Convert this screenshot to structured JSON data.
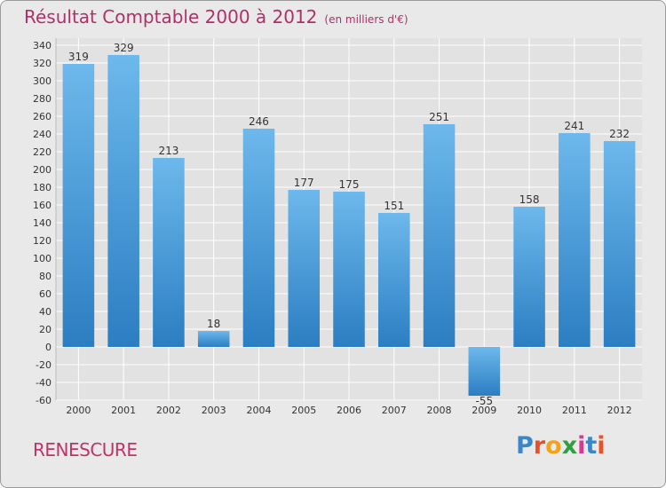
{
  "chart_data": {
    "type": "bar",
    "title": "Résultat Comptable 2000 à 2012",
    "subtitle": "(en milliers d'€)",
    "categories": [
      "2000",
      "2001",
      "2002",
      "2003",
      "2004",
      "2005",
      "2006",
      "2007",
      "2008",
      "2009",
      "2010",
      "2011",
      "2012"
    ],
    "values": [
      319,
      329,
      213,
      18,
      246,
      177,
      175,
      151,
      251,
      -55,
      158,
      241,
      232
    ],
    "ylim": [
      -60,
      340
    ],
    "yticks": [
      -60,
      -40,
      -20,
      0,
      20,
      40,
      60,
      80,
      100,
      120,
      140,
      160,
      180,
      200,
      220,
      240,
      260,
      280,
      300,
      320,
      340
    ],
    "grid": true,
    "xlabel": "",
    "ylabel": ""
  },
  "footer": {
    "commune": "RENESCURE",
    "logo_letters": [
      "P",
      "r",
      "o",
      "x",
      "i",
      "t",
      "i"
    ],
    "logo_colors": [
      "#3a86c8",
      "#e8522a",
      "#f2a31b",
      "#2f9e44",
      "#d83a8e",
      "#3a86c8",
      "#e8522a"
    ]
  },
  "colors": {
    "title": "#b0306a",
    "bar_light": "#6db8ec",
    "bar_dark": "#2b7ec2",
    "grid": "#ffffff",
    "axis_text": "#333333"
  }
}
